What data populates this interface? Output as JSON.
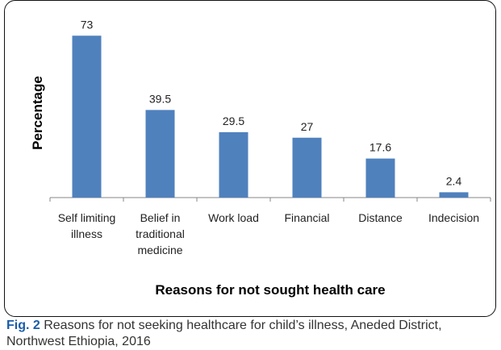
{
  "chart_data": {
    "type": "bar",
    "categories": [
      [
        "Self limiting",
        "illness"
      ],
      [
        "Belief in",
        "traditional",
        "medicine"
      ],
      [
        "Work load"
      ],
      [
        "Financial"
      ],
      [
        "Distance"
      ],
      [
        "Indecision"
      ]
    ],
    "values": [
      73,
      39.5,
      29.5,
      27,
      17.6,
      2.4
    ],
    "data_labels": [
      "73",
      "39.5",
      "29.5",
      "27",
      "17.6",
      "2.4"
    ],
    "xlabel": "Reasons for not sought health care",
    "ylabel": "Percentage",
    "ylim": [
      0,
      80
    ],
    "grid": false,
    "legend": "none",
    "bar_color": "#4f81bd"
  },
  "caption": {
    "fig_label": "Fig. 2",
    "text": " Reasons for not seeking healthcare for child’s illness, Aneded District, Northwest Ethiopia, 2016"
  }
}
